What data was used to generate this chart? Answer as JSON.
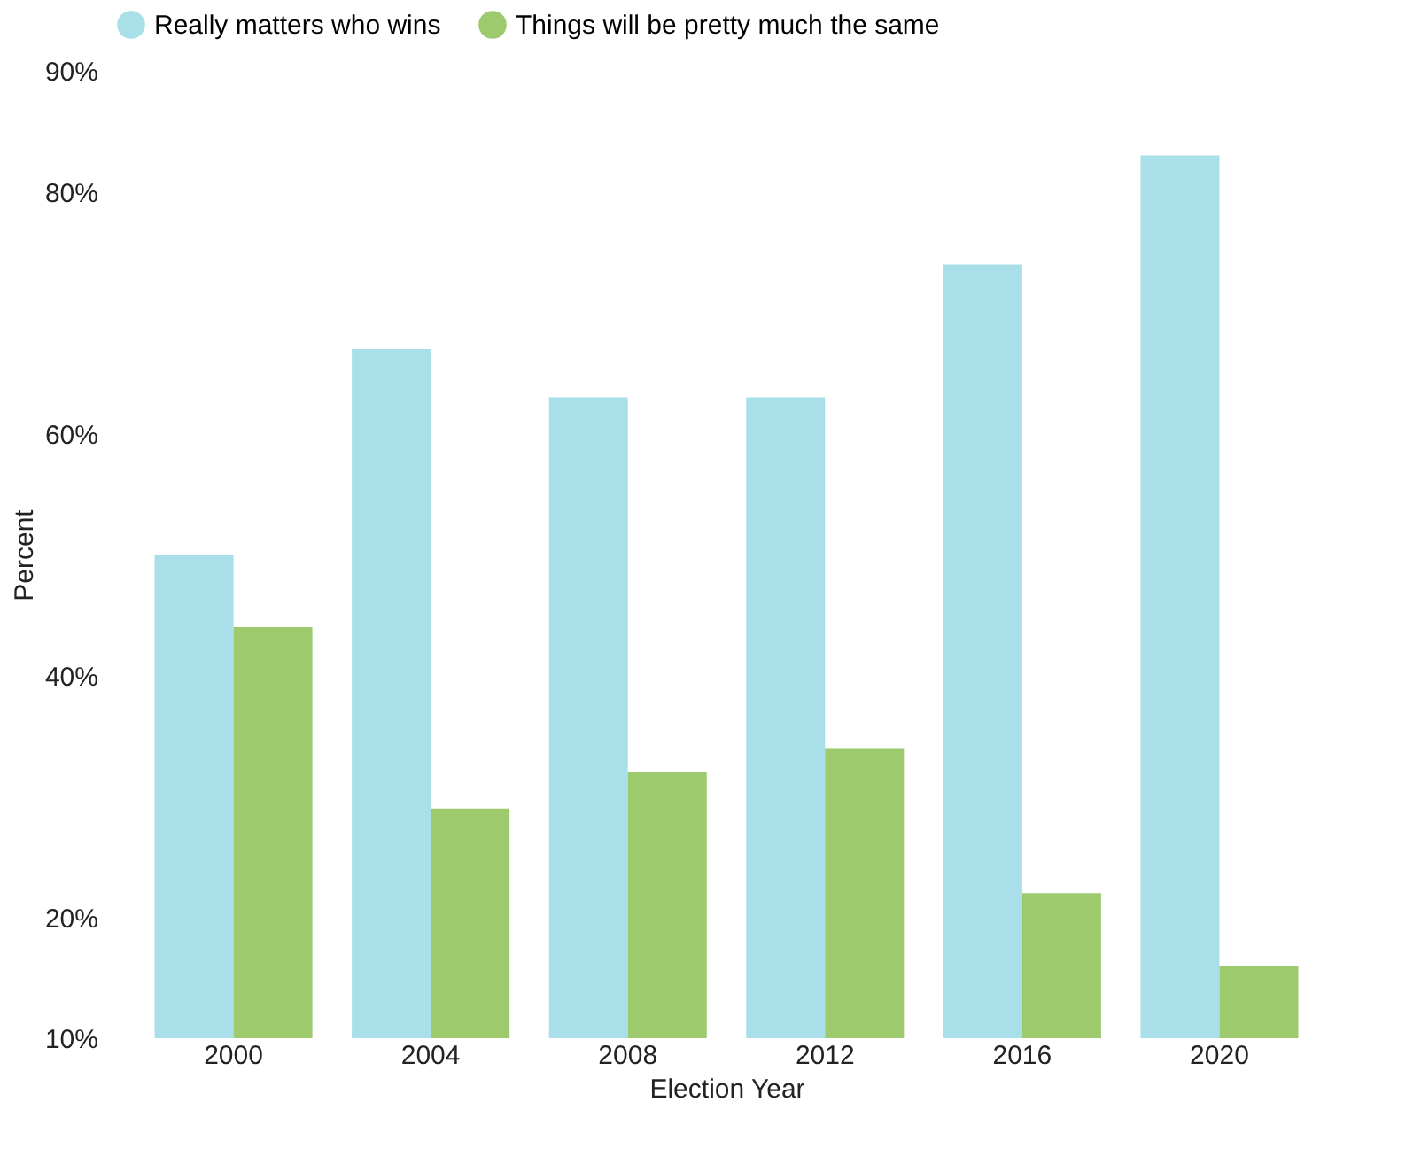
{
  "chart_data": {
    "type": "bar",
    "xlabel": "Election Year",
    "ylabel": "Percent",
    "categories": [
      "2000",
      "2004",
      "2008",
      "2012",
      "2016",
      "2020"
    ],
    "series": [
      {
        "name": "Really matters who wins",
        "color": "#a8dfe9",
        "values": [
          50,
          67,
          63,
          63,
          74,
          83
        ]
      },
      {
        "name": "Things will be pretty much the same",
        "color": "#9cca6c",
        "values": [
          44,
          29,
          32,
          34,
          22,
          16
        ]
      }
    ],
    "ylim": [
      10,
      90
    ],
    "yticks": [
      {
        "value": 10,
        "label": "10%"
      },
      {
        "value": 20,
        "label": "20%"
      },
      {
        "value": 40,
        "label": "40%"
      },
      {
        "value": 60,
        "label": "60%"
      },
      {
        "value": 80,
        "label": "80%"
      },
      {
        "value": 90,
        "label": "90%"
      }
    ],
    "grid": false,
    "legend": "top"
  }
}
